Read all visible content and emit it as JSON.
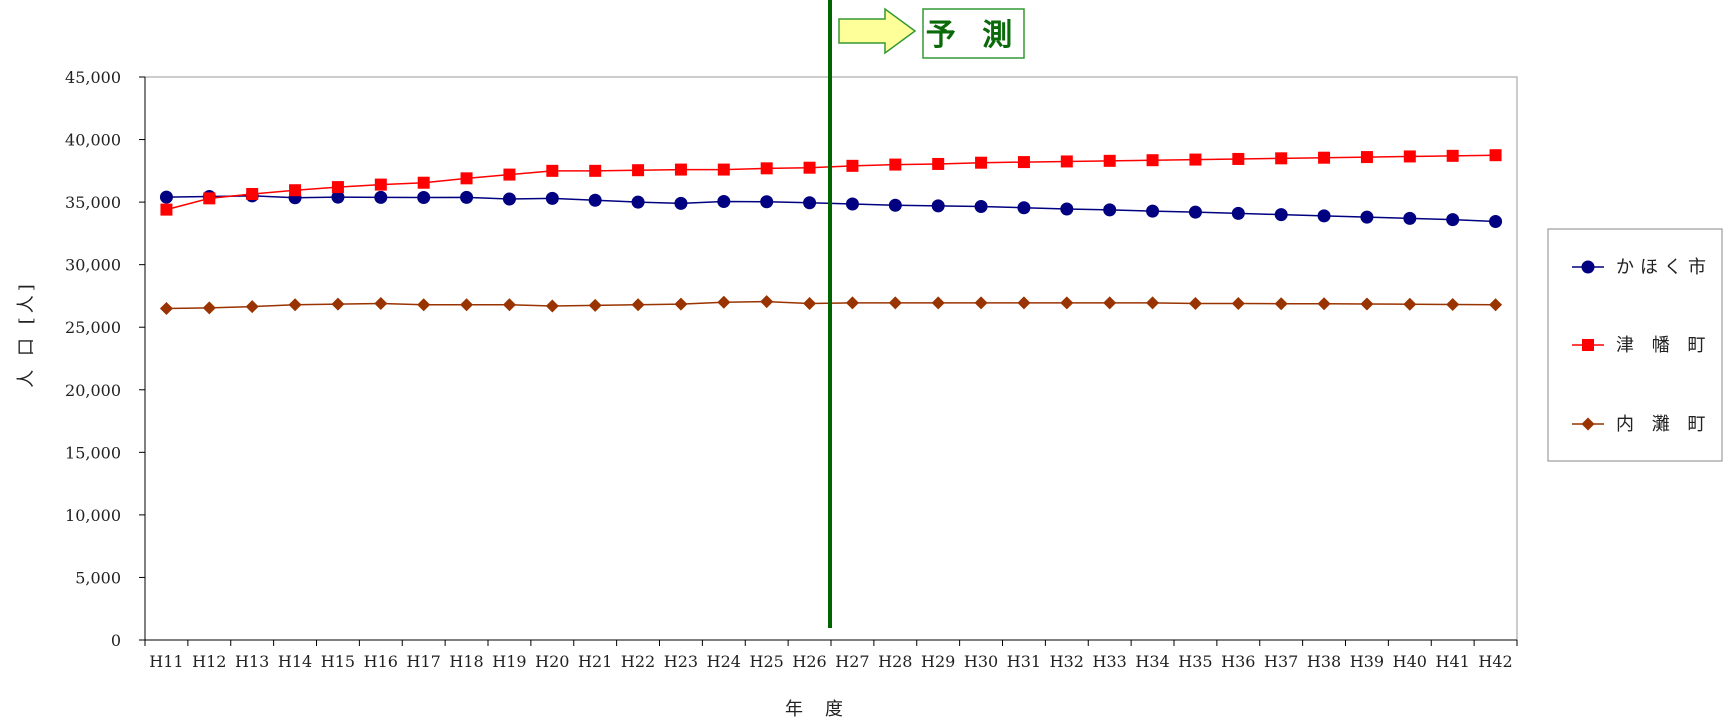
{
  "chart_data": {
    "type": "line",
    "xlabel": "年　度",
    "ylabel": "人 口 [人]",
    "ylim": [
      0,
      45000
    ],
    "yticks": [
      "0",
      "5,000",
      "10,000",
      "15,000",
      "20,000",
      "25,000",
      "30,000",
      "35,000",
      "40,000",
      "45,000"
    ],
    "categories": [
      "H11",
      "H12",
      "H13",
      "H14",
      "H15",
      "H16",
      "H17",
      "H18",
      "H19",
      "H20",
      "H21",
      "H22",
      "H23",
      "H24",
      "H25",
      "H26",
      "H27",
      "H28",
      "H29",
      "H30",
      "H31",
      "H32",
      "H33",
      "H34",
      "H35",
      "H36",
      "H37",
      "H38",
      "H39",
      "H40",
      "H41",
      "H42"
    ],
    "series": [
      {
        "name": "かほく市",
        "color": "#000080",
        "marker": "circle",
        "values": [
          35400,
          35450,
          35500,
          35350,
          35400,
          35380,
          35370,
          35380,
          35250,
          35300,
          35150,
          35000,
          34900,
          35050,
          35030,
          34950,
          34850,
          34750,
          34700,
          34650,
          34550,
          34450,
          34380,
          34280,
          34200,
          34100,
          34000,
          33900,
          33800,
          33700,
          33600,
          33450
        ]
      },
      {
        "name": "津 幡 町",
        "color": "#ff0000",
        "marker": "square",
        "values": [
          34400,
          35300,
          35650,
          35950,
          36200,
          36400,
          36550,
          36900,
          37200,
          37500,
          37500,
          37550,
          37600,
          37600,
          37700,
          37750,
          37900,
          38000,
          38050,
          38150,
          38200,
          38250,
          38300,
          38350,
          38400,
          38450,
          38500,
          38550,
          38600,
          38650,
          38700,
          38750
        ]
      },
      {
        "name": "内 灘 町",
        "color": "#993300",
        "marker": "diamond",
        "values": [
          26500,
          26550,
          26650,
          26800,
          26850,
          26900,
          26800,
          26800,
          26800,
          26700,
          26750,
          26800,
          26850,
          27000,
          27050,
          26900,
          26950,
          26950,
          26950,
          26950,
          26950,
          26950,
          26950,
          26950,
          26900,
          26900,
          26880,
          26880,
          26860,
          26840,
          26820,
          26800
        ]
      }
    ],
    "legend_position": "right",
    "forecast": {
      "label": "予 測",
      "start_after": "H26",
      "line_color": "#006400",
      "arrow_fill": "#ffff99",
      "arrow_stroke": "#339933"
    }
  }
}
